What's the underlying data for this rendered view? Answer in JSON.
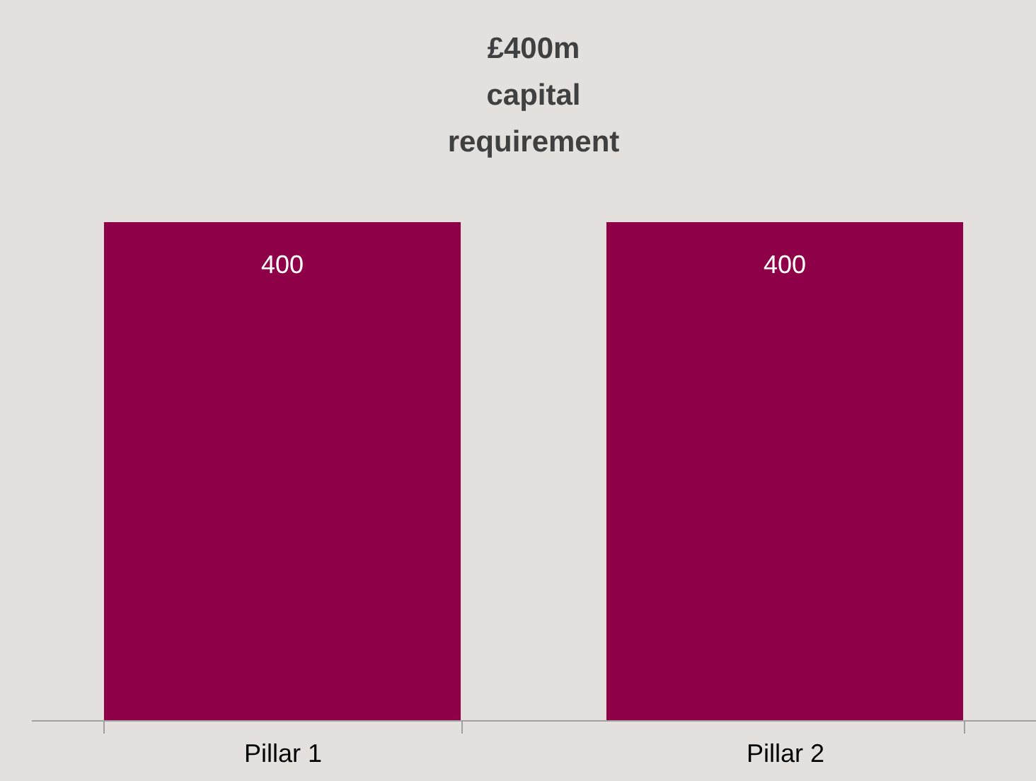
{
  "chart_data": {
    "type": "bar",
    "title": "£400m capital requirement",
    "categories": [
      "Pillar 1",
      "Pillar 2"
    ],
    "values": [
      400,
      400
    ],
    "color": "#8e0048",
    "data_labels": true,
    "grid": false
  }
}
